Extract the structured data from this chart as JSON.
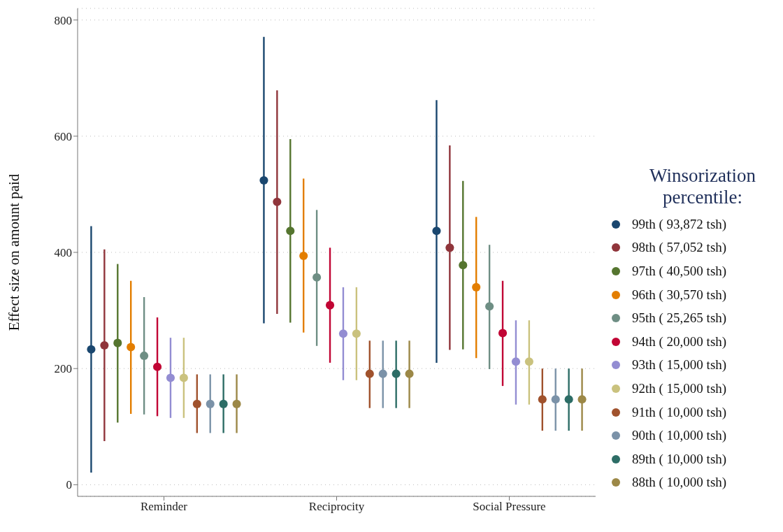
{
  "chart_data": {
    "type": "scatter",
    "ylabel": "Effect size on amount paid",
    "legend_title": "Winsorization percentile:",
    "categories": [
      "Reminder",
      "Reciprocity",
      "Social Pressure"
    ],
    "ylim": [
      -20,
      820
    ],
    "yticks": [
      0,
      200,
      400,
      600,
      800
    ],
    "grid": "y",
    "legend": "right",
    "marker": "circle",
    "series": [
      {
        "name": "99th ( 93,872 tsh)",
        "color": "#1a476f",
        "values": [
          233,
          524,
          437
        ],
        "errors": [
          [
            21,
            445
          ],
          [
            278,
            771
          ],
          [
            210,
            662
          ]
        ]
      },
      {
        "name": "98th ( 57,052 tsh)",
        "color": "#90353b",
        "values": [
          240,
          487,
          408
        ],
        "errors": [
          [
            75,
            405
          ],
          [
            294,
            679
          ],
          [
            232,
            584
          ]
        ]
      },
      {
        "name": "97th ( 40,500 tsh)",
        "color": "#55752f",
        "values": [
          244,
          437,
          378
        ],
        "errors": [
          [
            107,
            380
          ],
          [
            279,
            595
          ],
          [
            233,
            523
          ]
        ]
      },
      {
        "name": "96th ( 30,570 tsh)",
        "color": "#e37e00",
        "values": [
          237,
          394,
          340
        ],
        "errors": [
          [
            122,
            351
          ],
          [
            262,
            527
          ],
          [
            218,
            461
          ]
        ]
      },
      {
        "name": "95th ( 25,265 tsh)",
        "color": "#6e8e84",
        "values": [
          222,
          357,
          307
        ],
        "errors": [
          [
            121,
            323
          ],
          [
            239,
            473
          ],
          [
            199,
            413
          ]
        ]
      },
      {
        "name": "94th ( 20,000 tsh)",
        "color": "#c10534",
        "values": [
          203,
          309,
          261
        ],
        "errors": [
          [
            118,
            288
          ],
          [
            210,
            408
          ],
          [
            170,
            351
          ]
        ]
      },
      {
        "name": "93th ( 15,000 tsh)",
        "color": "#938dd2",
        "values": [
          184,
          260,
          212
        ],
        "errors": [
          [
            115,
            253
          ],
          [
            180,
            340
          ],
          [
            138,
            283
          ]
        ]
      },
      {
        "name": "92th ( 15,000 tsh)",
        "color": "#cac27e",
        "values": [
          184,
          260,
          212
        ],
        "errors": [
          [
            115,
            253
          ],
          [
            180,
            340
          ],
          [
            138,
            283
          ]
        ]
      },
      {
        "name": "91th ( 10,000 tsh)",
        "color": "#a0522d",
        "values": [
          139,
          191,
          147
        ],
        "errors": [
          [
            89,
            190
          ],
          [
            132,
            248
          ],
          [
            93,
            200
          ]
        ]
      },
      {
        "name": "90th ( 10,000 tsh)",
        "color": "#7b92a8",
        "values": [
          139,
          191,
          147
        ],
        "errors": [
          [
            89,
            190
          ],
          [
            132,
            248
          ],
          [
            93,
            200
          ]
        ]
      },
      {
        "name": "89th ( 10,000 tsh)",
        "color": "#2d6d66",
        "values": [
          139,
          191,
          147
        ],
        "errors": [
          [
            89,
            190
          ],
          [
            132,
            248
          ],
          [
            93,
            200
          ]
        ]
      },
      {
        "name": "88th ( 10,000 tsh)",
        "color": "#9c8847",
        "values": [
          139,
          191,
          147
        ],
        "errors": [
          [
            89,
            190
          ],
          [
            132,
            248
          ],
          [
            93,
            200
          ]
        ]
      }
    ]
  }
}
